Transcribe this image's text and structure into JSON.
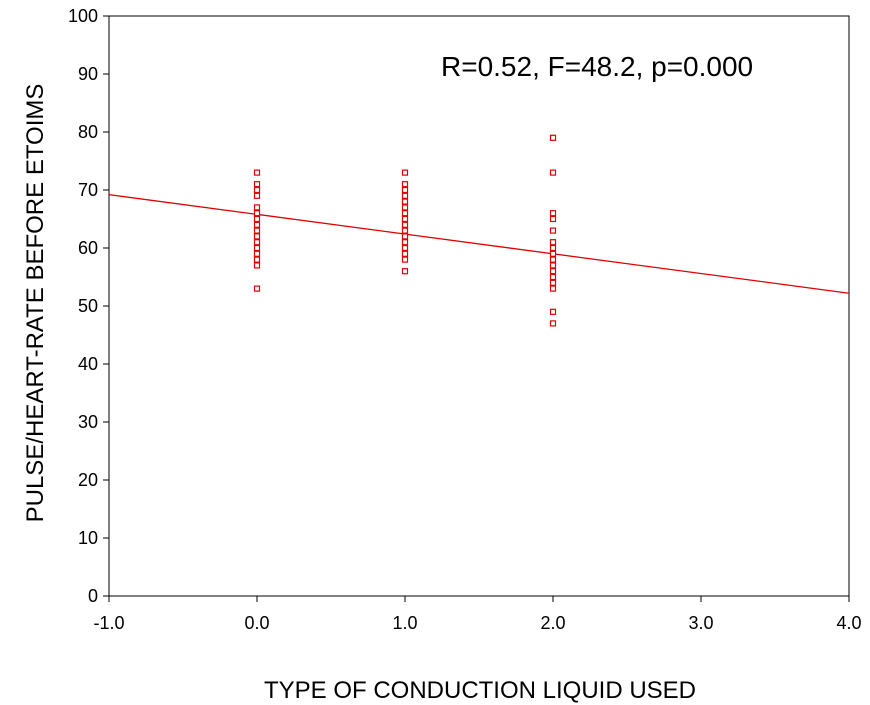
{
  "chart_data": {
    "type": "scatter",
    "title": "",
    "xlabel": "TYPE OF CONDUCTION LIQUID USED",
    "ylabel": "PULSE/HEART-RATE BEFORE ETOIMS",
    "xlim": [
      -1.0,
      4.0
    ],
    "ylim": [
      0,
      100
    ],
    "xticks": [
      "-1.0",
      "0.0",
      "1.0",
      "2.0",
      "3.0",
      "4.0"
    ],
    "yticks": [
      "0",
      "10",
      "20",
      "30",
      "40",
      "50",
      "60",
      "70",
      "80",
      "90",
      "100"
    ],
    "grid": false,
    "annotation": "R=0.52, F=48.2, p=0.000",
    "marker_color": "#e00000",
    "line_color": "#e00000",
    "series": [
      {
        "marker": "open-square",
        "points": [
          [
            0,
            73
          ],
          [
            0,
            71
          ],
          [
            0,
            70
          ],
          [
            0,
            69
          ],
          [
            0,
            67
          ],
          [
            0,
            66
          ],
          [
            0,
            65
          ],
          [
            0,
            64
          ],
          [
            0,
            63
          ],
          [
            0,
            62
          ],
          [
            0,
            61
          ],
          [
            0,
            60
          ],
          [
            0,
            59
          ],
          [
            0,
            58
          ],
          [
            0,
            57
          ],
          [
            0,
            53
          ],
          [
            1,
            73
          ],
          [
            1,
            71
          ],
          [
            1,
            70
          ],
          [
            1,
            69
          ],
          [
            1,
            68
          ],
          [
            1,
            67
          ],
          [
            1,
            66
          ],
          [
            1,
            65
          ],
          [
            1,
            64
          ],
          [
            1,
            63
          ],
          [
            1,
            62
          ],
          [
            1,
            61
          ],
          [
            1,
            60
          ],
          [
            1,
            59
          ],
          [
            1,
            58
          ],
          [
            1,
            56
          ],
          [
            2,
            79
          ],
          [
            2,
            73
          ],
          [
            2,
            66
          ],
          [
            2,
            65
          ],
          [
            2,
            63
          ],
          [
            2,
            61
          ],
          [
            2,
            60
          ],
          [
            2,
            59
          ],
          [
            2,
            58
          ],
          [
            2,
            57
          ],
          [
            2,
            56
          ],
          [
            2,
            55
          ],
          [
            2,
            54
          ],
          [
            2,
            53
          ],
          [
            2,
            49
          ],
          [
            2,
            47
          ]
        ]
      }
    ],
    "fit_line": {
      "type": "linear",
      "intercept": 65.8,
      "slope": -3.4
    }
  }
}
